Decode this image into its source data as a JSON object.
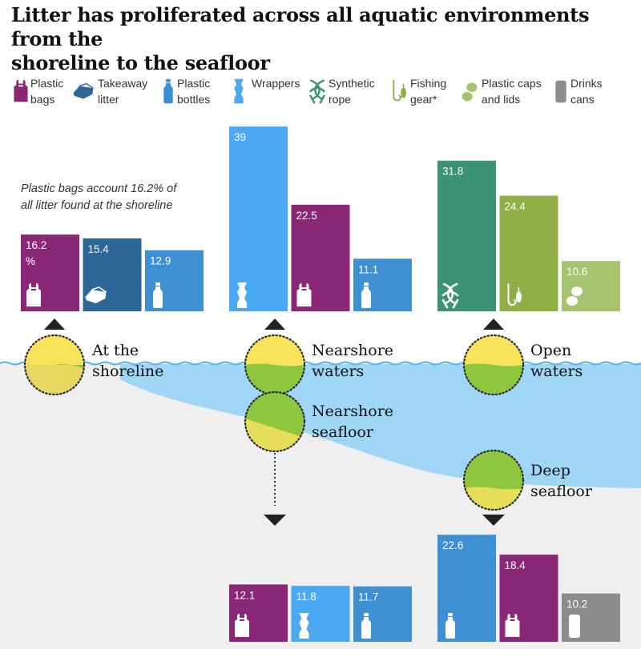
{
  "title_lines": [
    "Litter has proliferated across all aquatic environments from the",
    "shoreline to the seafloor"
  ],
  "legend": [
    {
      "key": "bags",
      "label_lines": [
        "Plastic",
        "bags"
      ],
      "icon": "plastic-bag-icon",
      "color": "#8a2776"
    },
    {
      "key": "takeaway",
      "label_lines": [
        "Takeaway",
        "litter"
      ],
      "icon": "takeaway-box-icon",
      "color": "#2d6797"
    },
    {
      "key": "bottles",
      "label_lines": [
        "Plastic",
        "bottles"
      ],
      "icon": "plastic-bottle-icon",
      "color": "#3f8fd3"
    },
    {
      "key": "wrappers",
      "label_lines": [
        "Wrappers"
      ],
      "icon": "wrapper-icon",
      "color": "#4ba9f4"
    },
    {
      "key": "rope",
      "label_lines": [
        "Synthetic",
        "rope"
      ],
      "icon": "rope-knot-icon",
      "color": "#3c9274"
    },
    {
      "key": "fishing",
      "label_lines": [
        "Fishing",
        "gear*"
      ],
      "icon": "fishing-hook-icon",
      "color": "#8fae43"
    },
    {
      "key": "caps",
      "label_lines": [
        "Plastic caps",
        "and lids"
      ],
      "icon": "caps-lids-icon",
      "color": "#a4c46e"
    },
    {
      "key": "cans",
      "label_lines": [
        "Drinks",
        "cans"
      ],
      "icon": "drinks-can-icon",
      "color": "#8c8c8c"
    }
  ],
  "annotation_lines": [
    "Plastic bags account 16.2% of",
    "all litter found at the shoreline"
  ],
  "zone_labels": {
    "shoreline": [
      "At the",
      "shoreline"
    ],
    "nearshore_waters": [
      "Nearshore",
      "waters"
    ],
    "nearshore_seafloor": [
      "Nearshore",
      "seafloor"
    ],
    "open_waters": [
      "Open",
      "waters"
    ],
    "deep_seafloor": [
      "Deep",
      "seafloor"
    ]
  },
  "chart_data": [
    {
      "type": "bar",
      "zone": "shoreline",
      "categories": [
        "Plastic bags",
        "Takeaway litter",
        "Plastic bottles"
      ],
      "values": [
        16.2,
        15.4,
        12.9
      ],
      "value_labels": [
        "16.2 %",
        "15.4",
        "12.9"
      ]
    },
    {
      "type": "bar",
      "zone": "nearshore_waters",
      "categories": [
        "Wrappers",
        "Plastic bags",
        "Plastic bottles"
      ],
      "values": [
        39,
        22.5,
        11.1
      ],
      "value_labels": [
        "39",
        "22.5",
        "11.1"
      ]
    },
    {
      "type": "bar",
      "zone": "open_waters",
      "categories": [
        "Synthetic rope",
        "Fishing gear*",
        "Plastic caps and lids"
      ],
      "values": [
        31.8,
        24.4,
        10.6
      ],
      "value_labels": [
        "31.8",
        "24.4",
        "10.6"
      ]
    },
    {
      "type": "bar",
      "zone": "nearshore_seafloor",
      "categories": [
        "Plastic bags",
        "Wrappers",
        "Plastic bottles"
      ],
      "values": [
        12.1,
        11.8,
        11.7
      ],
      "value_labels": [
        "12.1",
        "11.8",
        "11.7"
      ]
    },
    {
      "type": "bar",
      "zone": "deep_seafloor",
      "categories": [
        "Plastic bottles",
        "Plastic bags",
        "Drinks cans"
      ],
      "values": [
        22.6,
        18.4,
        10.2
      ],
      "value_labels": [
        "22.6",
        "18.4",
        "10.2"
      ]
    }
  ]
}
